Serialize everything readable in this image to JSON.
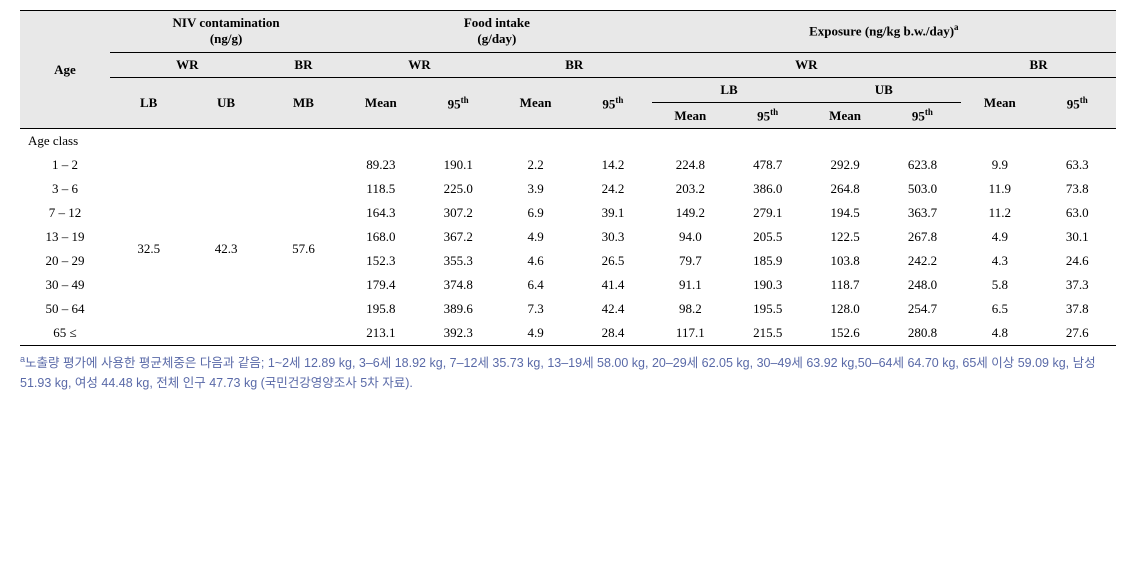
{
  "headers": {
    "age": "Age",
    "niv": "NIV contamination",
    "niv_unit": "(ng/g)",
    "food": "Food intake",
    "food_unit": "(g/day)",
    "exposure": "Exposure (ng/kg b.w./day)",
    "exposure_sup": "a",
    "wr": "WR",
    "br": "BR",
    "lb": "LB",
    "ub": "UB",
    "mb": "MB",
    "mean": "Mean",
    "p95": "95",
    "p95_sup": "th"
  },
  "age_class_label": "Age class",
  "contamination": {
    "wr_lb": "32.5",
    "wr_ub": "42.3",
    "br_mb": "57.6"
  },
  "rows": [
    {
      "age": "1 – 2",
      "fi_wr_mean": "89.23",
      "fi_wr_95": "190.1",
      "fi_br_mean": "2.2",
      "fi_br_95": "14.2",
      "ex_wr_lb_mean": "224.8",
      "ex_wr_lb_95": "478.7",
      "ex_wr_ub_mean": "292.9",
      "ex_wr_ub_95": "623.8",
      "ex_br_mean": "9.9",
      "ex_br_95": "63.3"
    },
    {
      "age": "3 – 6",
      "fi_wr_mean": "118.5",
      "fi_wr_95": "225.0",
      "fi_br_mean": "3.9",
      "fi_br_95": "24.2",
      "ex_wr_lb_mean": "203.2",
      "ex_wr_lb_95": "386.0",
      "ex_wr_ub_mean": "264.8",
      "ex_wr_ub_95": "503.0",
      "ex_br_mean": "11.9",
      "ex_br_95": "73.8"
    },
    {
      "age": "7 – 12",
      "fi_wr_mean": "164.3",
      "fi_wr_95": "307.2",
      "fi_br_mean": "6.9",
      "fi_br_95": "39.1",
      "ex_wr_lb_mean": "149.2",
      "ex_wr_lb_95": "279.1",
      "ex_wr_ub_mean": "194.5",
      "ex_wr_ub_95": "363.7",
      "ex_br_mean": "11.2",
      "ex_br_95": "63.0"
    },
    {
      "age": "13 – 19",
      "fi_wr_mean": "168.0",
      "fi_wr_95": "367.2",
      "fi_br_mean": "4.9",
      "fi_br_95": "30.3",
      "ex_wr_lb_mean": "94.0",
      "ex_wr_lb_95": "205.5",
      "ex_wr_ub_mean": "122.5",
      "ex_wr_ub_95": "267.8",
      "ex_br_mean": "4.9",
      "ex_br_95": "30.1"
    },
    {
      "age": "20 – 29",
      "fi_wr_mean": "152.3",
      "fi_wr_95": "355.3",
      "fi_br_mean": "4.6",
      "fi_br_95": "26.5",
      "ex_wr_lb_mean": "79.7",
      "ex_wr_lb_95": "185.9",
      "ex_wr_ub_mean": "103.8",
      "ex_wr_ub_95": "242.2",
      "ex_br_mean": "4.3",
      "ex_br_95": "24.6"
    },
    {
      "age": "30 – 49",
      "fi_wr_mean": "179.4",
      "fi_wr_95": "374.8",
      "fi_br_mean": "6.4",
      "fi_br_95": "41.4",
      "ex_wr_lb_mean": "91.1",
      "ex_wr_lb_95": "190.3",
      "ex_wr_ub_mean": "118.7",
      "ex_wr_ub_95": "248.0",
      "ex_br_mean": "5.8",
      "ex_br_95": "37.3"
    },
    {
      "age": "50 – 64",
      "fi_wr_mean": "195.8",
      "fi_wr_95": "389.6",
      "fi_br_mean": "7.3",
      "fi_br_95": "42.4",
      "ex_wr_lb_mean": "98.2",
      "ex_wr_lb_95": "195.5",
      "ex_wr_ub_mean": "128.0",
      "ex_wr_ub_95": "254.7",
      "ex_br_mean": "6.5",
      "ex_br_95": "37.8"
    },
    {
      "age": "65 ≤",
      "fi_wr_mean": "213.1",
      "fi_wr_95": "392.3",
      "fi_br_mean": "4.9",
      "fi_br_95": "28.4",
      "ex_wr_lb_mean": "117.1",
      "ex_wr_lb_95": "215.5",
      "ex_wr_ub_mean": "152.6",
      "ex_wr_ub_95": "280.8",
      "ex_br_mean": "4.8",
      "ex_br_95": "27.6"
    }
  ],
  "footnote": {
    "sup": "a",
    "text": "노출량 평가에 사용한 평균체중은 다음과 같음; 1~2세 12.89 kg, 3–6세 18.92 kg, 7–12세 35.73 kg, 13–19세 58.00 kg, 20–29세 62.05 kg, 30–49세 63.92 kg,50–64세 64.70 kg, 65세 이상 59.09 kg, 남성 51.93 kg, 여성 44.48 kg, 전체 인구 47.73 kg (국민건강영양조사 5차 자료)."
  },
  "style": {
    "body_font_size": 13,
    "footnote_color": "#5a6aa8",
    "header_bg": "#e8e8e8",
    "border_color": "#000000"
  }
}
